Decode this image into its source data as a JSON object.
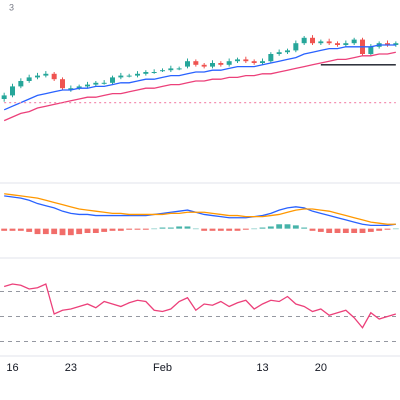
{
  "header_text": "3",
  "chart_data": [
    {
      "type": "candlestick",
      "ylim": [
        0,
        100
      ],
      "up_color": "#26a69a",
      "down_color": "#ef5350",
      "open": [
        45,
        47,
        52,
        55,
        57,
        58,
        59,
        56,
        50,
        51,
        52,
        53,
        54,
        54,
        57,
        58,
        58,
        59,
        60,
        61,
        61,
        62,
        63,
        66,
        64,
        63,
        65,
        64,
        66,
        67,
        66,
        65,
        66,
        70,
        71,
        72,
        76,
        79,
        76,
        77,
        76,
        75,
        76,
        78,
        70,
        74,
        76,
        75
      ],
      "close": [
        47,
        52,
        55,
        57,
        58,
        59,
        56,
        51,
        51,
        52,
        53,
        54,
        54,
        57,
        58,
        58,
        59,
        60,
        60,
        61,
        62,
        62,
        66,
        64,
        63,
        65,
        64,
        66,
        67,
        66,
        65,
        66,
        70,
        71,
        72,
        76,
        79,
        76,
        77,
        76,
        75,
        76,
        78,
        70,
        74,
        76,
        75,
        76
      ],
      "high": [
        48.5,
        53.5,
        56.5,
        58.5,
        59.5,
        60.5,
        60,
        57,
        52.5,
        53,
        54.5,
        55,
        55.5,
        58,
        59.5,
        59,
        60.5,
        61,
        61.5,
        62,
        63.5,
        63,
        67.5,
        67,
        65,
        66.5,
        66,
        67.5,
        68,
        68.5,
        67,
        67.5,
        71,
        72.5,
        73,
        77.5,
        80,
        80.5,
        78,
        78.5,
        77,
        77.5,
        79,
        79,
        75.5,
        77,
        77.5,
        77
      ],
      "low": [
        43.5,
        46,
        51,
        54,
        56,
        57,
        55,
        50,
        49,
        50,
        51,
        52,
        53,
        53,
        56,
        57,
        57,
        58,
        59,
        60,
        60,
        61,
        62,
        63,
        62,
        62,
        63,
        63,
        65,
        65,
        64,
        64,
        65,
        69,
        70,
        71,
        75,
        75,
        75,
        75,
        74,
        74,
        75,
        69,
        69,
        73,
        74,
        74
      ],
      "series": [
        {
          "color": "#2962ff",
          "style": "solid",
          "values": [
            39,
            41,
            43,
            45,
            47,
            48,
            49,
            50,
            50,
            51,
            51,
            52,
            52,
            53,
            54,
            54,
            55,
            56,
            56,
            57,
            58,
            58,
            59,
            60,
            60,
            61,
            61,
            62,
            63,
            63,
            63,
            64,
            65,
            66,
            67,
            68,
            70,
            71,
            72,
            73,
            73,
            74,
            74,
            74,
            74,
            75,
            75,
            75
          ]
        },
        {
          "color": "#ec407a",
          "style": "solid",
          "values": [
            33,
            35,
            37,
            38,
            40,
            41,
            42,
            43,
            44,
            45,
            46,
            46,
            47,
            48,
            48,
            49,
            50,
            51,
            51,
            52,
            53,
            53,
            54,
            55,
            55,
            56,
            56,
            57,
            57,
            58,
            58,
            59,
            59,
            60,
            61,
            62,
            63,
            64,
            65,
            66,
            67,
            67,
            68,
            69,
            69,
            70,
            70,
            71
          ]
        },
        {
          "color": "#131722",
          "style": "solid",
          "values": [
            null,
            null,
            null,
            null,
            null,
            null,
            null,
            null,
            null,
            null,
            null,
            null,
            null,
            null,
            null,
            null,
            null,
            null,
            null,
            null,
            null,
            null,
            null,
            null,
            null,
            null,
            null,
            null,
            null,
            null,
            null,
            null,
            null,
            null,
            null,
            null,
            null,
            null,
            64,
            64,
            64,
            64,
            64,
            64,
            64,
            64,
            64,
            64
          ]
        },
        {
          "color": "#f48fb1",
          "style": "dotted",
          "values": [
            43,
            43,
            43,
            43,
            43,
            43,
            43,
            43,
            43,
            43,
            43,
            43,
            43,
            43,
            43,
            43,
            43,
            43,
            43,
            43,
            43,
            43,
            43,
            43,
            43,
            43,
            43,
            43,
            43,
            43,
            43,
            43,
            43,
            43,
            43,
            43,
            43,
            43,
            43,
            43,
            43,
            43,
            43,
            43,
            43,
            43,
            43,
            43
          ]
        }
      ]
    },
    {
      "type": "macd",
      "ylim": [
        -1.5,
        4
      ],
      "positive_color": "#26a69a",
      "negative_color": "#ef5350",
      "histogram": [
        -0.2,
        -0.2,
        -0.2,
        -0.3,
        -0.5,
        -0.5,
        -0.5,
        -0.6,
        -0.6,
        -0.5,
        -0.4,
        -0.4,
        -0.3,
        -0.2,
        -0.2,
        -0.1,
        -0.1,
        -0.1,
        0,
        0.1,
        0.1,
        0.2,
        0.2,
        0,
        -0.2,
        -0.2,
        -0.2,
        -0.2,
        -0.2,
        -0.1,
        0,
        0.1,
        0.2,
        0.4,
        0.4,
        0.3,
        0.1,
        -0.2,
        -0.3,
        -0.4,
        -0.4,
        -0.4,
        -0.4,
        -0.4,
        -0.3,
        -0.2,
        -0.1,
        0
      ],
      "series": [
        {
          "color": "#2962ff",
          "style": "solid",
          "values": [
            3.0,
            2.9,
            2.8,
            2.6,
            2.3,
            2.1,
            1.9,
            1.6,
            1.4,
            1.3,
            1.3,
            1.2,
            1.2,
            1.2,
            1.2,
            1.2,
            1.2,
            1.2,
            1.3,
            1.4,
            1.5,
            1.6,
            1.7,
            1.5,
            1.3,
            1.2,
            1.1,
            1.0,
            1.0,
            1.0,
            1.1,
            1.2,
            1.4,
            1.7,
            1.9,
            2.0,
            1.9,
            1.6,
            1.4,
            1.2,
            1.0,
            0.8,
            0.6,
            0.4,
            0.3,
            0.3,
            0.3,
            0.4
          ]
        },
        {
          "color": "#ff9800",
          "style": "solid",
          "values": [
            3.2,
            3.1,
            3.0,
            2.9,
            2.8,
            2.6,
            2.4,
            2.2,
            2.0,
            1.8,
            1.7,
            1.6,
            1.5,
            1.4,
            1.4,
            1.3,
            1.3,
            1.3,
            1.3,
            1.3,
            1.4,
            1.4,
            1.5,
            1.5,
            1.5,
            1.4,
            1.3,
            1.2,
            1.2,
            1.1,
            1.1,
            1.1,
            1.2,
            1.3,
            1.5,
            1.7,
            1.8,
            1.8,
            1.7,
            1.6,
            1.4,
            1.2,
            1.0,
            0.8,
            0.6,
            0.5,
            0.4,
            0.4
          ]
        }
      ]
    },
    {
      "type": "line",
      "ylim": [
        15,
        85
      ],
      "levels": [
        70,
        50,
        30
      ],
      "categories": [
        null,
        "16",
        null,
        null,
        null,
        null,
        null,
        null,
        "23",
        null,
        null,
        null,
        null,
        null,
        null,
        null,
        null,
        null,
        null,
        "Feb",
        null,
        null,
        null,
        null,
        null,
        null,
        null,
        null,
        null,
        null,
        null,
        "13",
        null,
        null,
        null,
        null,
        null,
        null,
        "20",
        null,
        null,
        null,
        null,
        null,
        null,
        null,
        null,
        null
      ],
      "series": [
        {
          "color": "#ec407a",
          "style": "solid",
          "values": [
            74,
            76,
            75,
            72,
            73,
            76,
            52,
            55,
            56,
            58,
            60,
            57,
            62,
            60,
            58,
            61,
            63,
            62,
            55,
            54,
            56,
            62,
            65,
            55,
            60,
            59,
            62,
            58,
            61,
            63,
            56,
            60,
            63,
            62,
            66,
            60,
            58,
            54,
            56,
            51,
            53,
            55,
            49,
            41,
            53,
            48,
            50,
            52
          ]
        }
      ]
    }
  ]
}
